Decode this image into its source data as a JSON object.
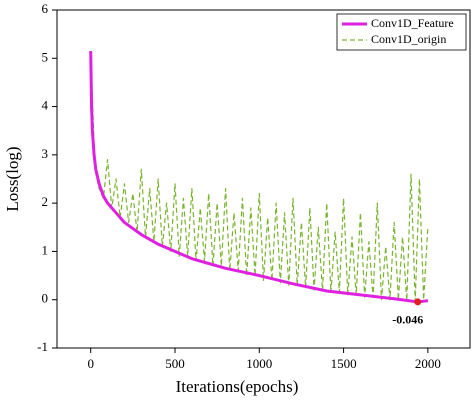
{
  "chart_data": {
    "type": "line",
    "xlabel": "Iterations(epochs)",
    "ylabel": "Loss(log)",
    "xlim": [
      -200,
      2250
    ],
    "ylim": [
      -1,
      6
    ],
    "xticks": [
      0,
      500,
      1000,
      1500,
      2000
    ],
    "yticks": [
      -1,
      0,
      1,
      2,
      3,
      4,
      5,
      6
    ],
    "legend": "upper right",
    "series": [
      {
        "name": "Conv1D_Feature",
        "color": "#e020e0",
        "style": "solid",
        "x": [
          0,
          5,
          10,
          20,
          30,
          50,
          75,
          100,
          150,
          200,
          300,
          400,
          500,
          600,
          700,
          800,
          1000,
          1200,
          1400,
          1600,
          1800,
          1940,
          2000
        ],
        "values": [
          5.15,
          4.0,
          3.5,
          3.0,
          2.7,
          2.4,
          2.15,
          2.0,
          1.8,
          1.6,
          1.35,
          1.15,
          1.0,
          0.85,
          0.75,
          0.65,
          0.5,
          0.33,
          0.18,
          0.1,
          0.02,
          -0.046,
          -0.02
        ]
      },
      {
        "name": "Conv1D_origin",
        "color": "#7ab32e",
        "style": "dashed",
        "x": [
          0,
          25,
          50,
          75,
          100,
          125,
          150,
          175,
          200,
          225,
          250,
          275,
          300,
          325,
          350,
          375,
          400,
          425,
          450,
          475,
          500,
          525,
          550,
          575,
          600,
          625,
          650,
          675,
          700,
          725,
          750,
          775,
          800,
          825,
          850,
          875,
          900,
          925,
          950,
          975,
          1000,
          1025,
          1050,
          1075,
          1100,
          1125,
          1150,
          1175,
          1200,
          1225,
          1250,
          1275,
          1300,
          1325,
          1350,
          1375,
          1400,
          1425,
          1450,
          1475,
          1500,
          1525,
          1550,
          1575,
          1600,
          1625,
          1650,
          1675,
          1700,
          1725,
          1750,
          1775,
          1800,
          1825,
          1850,
          1875,
          1900,
          1925,
          1950,
          1975,
          2000
        ],
        "values": [
          5.15,
          2.7,
          2.3,
          2.1,
          2.9,
          1.9,
          2.5,
          1.7,
          2.4,
          1.6,
          2.2,
          1.4,
          2.7,
          1.3,
          2.3,
          1.2,
          2.5,
          1.1,
          2.0,
          1.0,
          2.4,
          0.9,
          2.1,
          0.9,
          2.3,
          0.8,
          1.9,
          0.8,
          2.2,
          0.7,
          2.0,
          0.7,
          2.3,
          0.6,
          1.8,
          0.6,
          2.1,
          0.5,
          1.9,
          0.5,
          2.2,
          0.4,
          1.7,
          0.4,
          2.0,
          0.35,
          1.8,
          0.3,
          2.1,
          0.3,
          1.6,
          0.25,
          1.9,
          0.2,
          1.5,
          0.2,
          2.0,
          0.15,
          1.4,
          0.15,
          2.1,
          0.1,
          1.3,
          0.1,
          1.8,
          0.05,
          1.2,
          0.05,
          2.0,
          0.0,
          1.1,
          0.0,
          1.6,
          0.0,
          1.3,
          -0.02,
          2.6,
          -0.03,
          2.5,
          0.0,
          1.5
        ]
      }
    ],
    "annotation": {
      "text": "-0.046",
      "x": 1940,
      "y": -0.046
    }
  }
}
